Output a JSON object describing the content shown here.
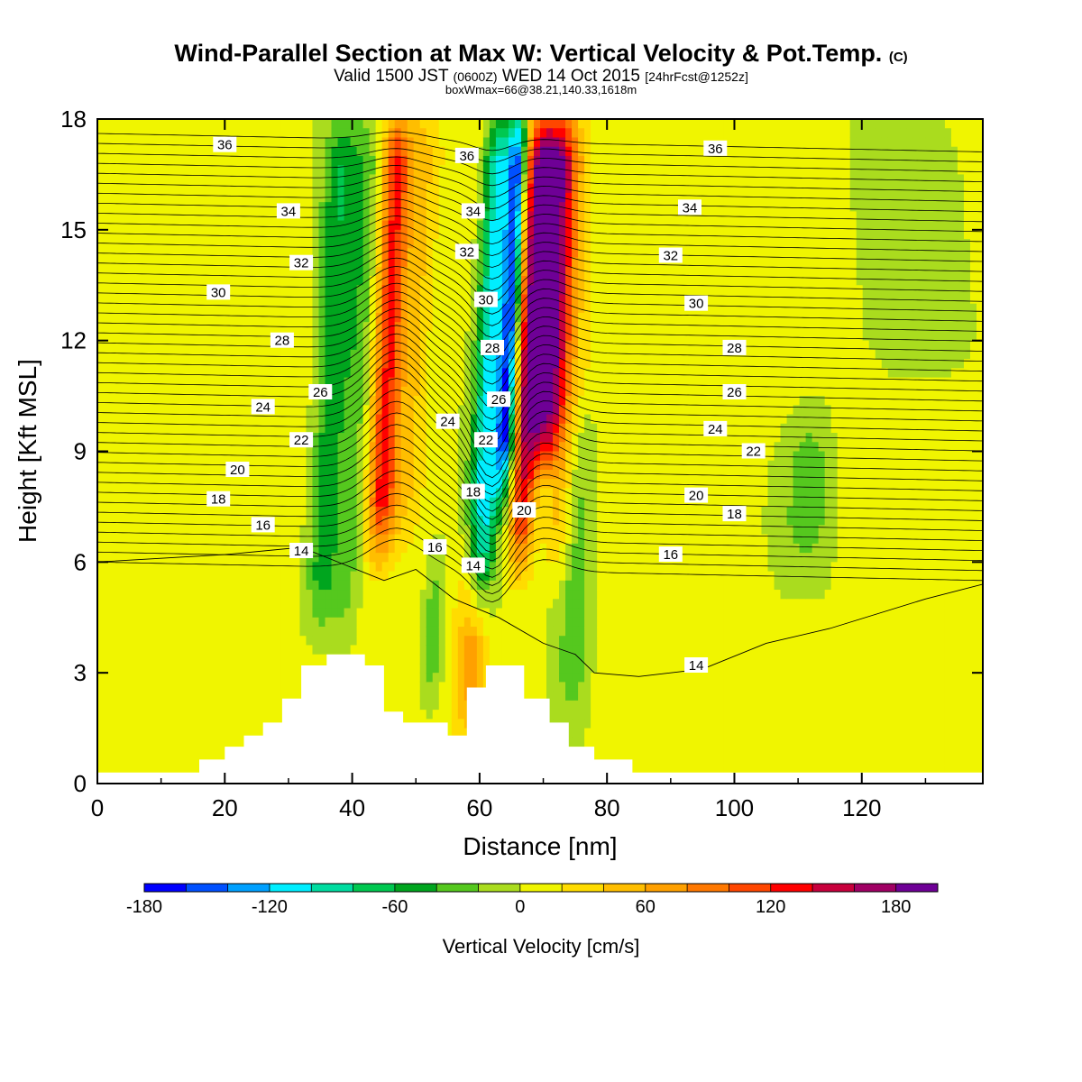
{
  "title": {
    "main": "Wind-Parallel Section at Max W: Vertical Velocity & Pot.Temp.",
    "copyright": "(C)",
    "valid_prefix": "Valid 1500 JST",
    "valid_utc": "(0600Z)",
    "valid_date": "WED 14 Oct 2015",
    "forecast": "[24hrFcst@1252z]",
    "box_info": "boxWmax=66@38.21,140.33,1618m"
  },
  "chart_data": {
    "type": "heatmap",
    "xlabel": "Distance [nm]",
    "ylabel": "Height [Kft MSL]",
    "xlim": [
      0,
      139
    ],
    "ylim": [
      0,
      18
    ],
    "x_ticks": [
      "0",
      "20",
      "40",
      "60",
      "80",
      "100",
      "120"
    ],
    "y_ticks": [
      "0",
      "3",
      "6",
      "9",
      "12",
      "15",
      "18"
    ],
    "colorbar": {
      "label": "Vertical Velocity [cm/s]",
      "range": [
        -180,
        200
      ],
      "step": 20,
      "tick_labels": [
        "-180",
        "-120",
        "-60",
        "0",
        "60",
        "120",
        "180"
      ],
      "colors": [
        "#0000ff",
        "#0050ff",
        "#00a0ff",
        "#00eeff",
        "#00dca0",
        "#00c850",
        "#00a51e",
        "#55c81e",
        "#aadc1e",
        "#f0f500",
        "#ffdc00",
        "#ffbe00",
        "#ffa000",
        "#ff7800",
        "#ff4600",
        "#ff0000",
        "#c8003c",
        "#a00064",
        "#6e0096"
      ]
    },
    "terrain_kft": [
      [
        0,
        0.3
      ],
      [
        16,
        0.3
      ],
      [
        16,
        0.65
      ],
      [
        20,
        0.65
      ],
      [
        20,
        1
      ],
      [
        23,
        1
      ],
      [
        23,
        1.3
      ],
      [
        26,
        1.3
      ],
      [
        26,
        1.65
      ],
      [
        29,
        1.65
      ],
      [
        29,
        2.3
      ],
      [
        32,
        2.3
      ],
      [
        32,
        3.2
      ],
      [
        36,
        3.2
      ],
      [
        36,
        3.5
      ],
      [
        42,
        3.5
      ],
      [
        42,
        3.2
      ],
      [
        45,
        3.2
      ],
      [
        45,
        1.95
      ],
      [
        48,
        1.95
      ],
      [
        48,
        1.65
      ],
      [
        55,
        1.65
      ],
      [
        55,
        1.3
      ],
      [
        58,
        1.3
      ],
      [
        58,
        2.6
      ],
      [
        61,
        2.6
      ],
      [
        61,
        3.2
      ],
      [
        67,
        3.2
      ],
      [
        67,
        2.3
      ],
      [
        71,
        2.3
      ],
      [
        71,
        1.65
      ],
      [
        74,
        1.65
      ],
      [
        74,
        1.0
      ],
      [
        78,
        1.0
      ],
      [
        78,
        0.65
      ],
      [
        84,
        0.65
      ],
      [
        84,
        0.3
      ],
      [
        139,
        0.3
      ]
    ],
    "vertical_velocity_features": [
      {
        "x": 36,
        "width": 2.5,
        "z_bottom": 4.5,
        "z_top": 18,
        "value": -60
      },
      {
        "x": 40,
        "width": 2.5,
        "z_bottom": 4,
        "z_top": 18,
        "value": -40
      },
      {
        "x": 45,
        "width": 2.2,
        "z_bottom": 6.5,
        "z_top": 18,
        "value": 120
      },
      {
        "x": 49,
        "width": 2.5,
        "z_bottom": 7,
        "z_top": 18,
        "value": 40
      },
      {
        "x": 54,
        "width": 1.8,
        "z_bottom": 2,
        "z_top": 6,
        "value": -40
      },
      {
        "x": 60,
        "width": 2.5,
        "z_bottom": 1.5,
        "z_top": 6.5,
        "value": 60
      },
      {
        "x": 61,
        "width": 2.2,
        "z_bottom": 5,
        "z_top": 18,
        "value": -120
      },
      {
        "x": 64,
        "width": 1.5,
        "z_bottom": 8,
        "z_top": 18,
        "value": -160
      },
      {
        "x": 67,
        "width": 2,
        "z_bottom": 6,
        "z_top": 18,
        "value": 120
      },
      {
        "x": 70,
        "width": 2.8,
        "z_bottom": 9,
        "z_top": 18,
        "value": 180
      },
      {
        "x": 73,
        "width": 2.5,
        "z_bottom": 6,
        "z_top": 18,
        "value": 40
      },
      {
        "x": 76,
        "width": 2.5,
        "z_bottom": 2,
        "z_top": 10,
        "value": -40
      },
      {
        "x": 112,
        "width": 4,
        "z_bottom": 6,
        "z_top": 10,
        "value": -40
      },
      {
        "x": 125,
        "width": 8,
        "z_bottom": 11,
        "z_top": 18,
        "value": -20
      }
    ],
    "potential_temperature_labels": [
      "36",
      "34",
      "32",
      "30",
      "28",
      "26",
      "24",
      "22",
      "20",
      "18",
      "16",
      "14"
    ]
  }
}
